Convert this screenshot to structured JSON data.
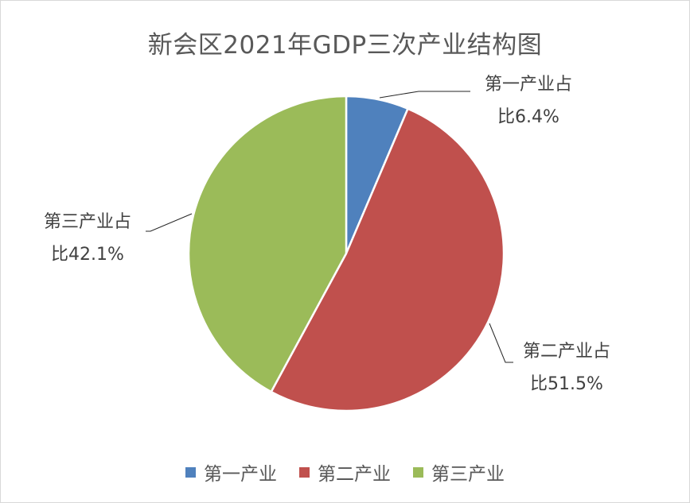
{
  "chart_data": {
    "type": "pie",
    "title": "新会区2021年GDP三次产业结构图",
    "categories": [
      "第一产业",
      "第二产业",
      "第三产业"
    ],
    "values": [
      6.4,
      51.5,
      42.1
    ],
    "unit": "%",
    "colors": [
      "#4f81bd",
      "#c0504d",
      "#9bbb59"
    ],
    "data_labels": [
      [
        "第一产业占",
        "比6.4%"
      ],
      [
        "第二产业占",
        "比51.5%"
      ],
      [
        "第三产业占",
        "比42.1%"
      ]
    ],
    "legend_position": "bottom"
  }
}
